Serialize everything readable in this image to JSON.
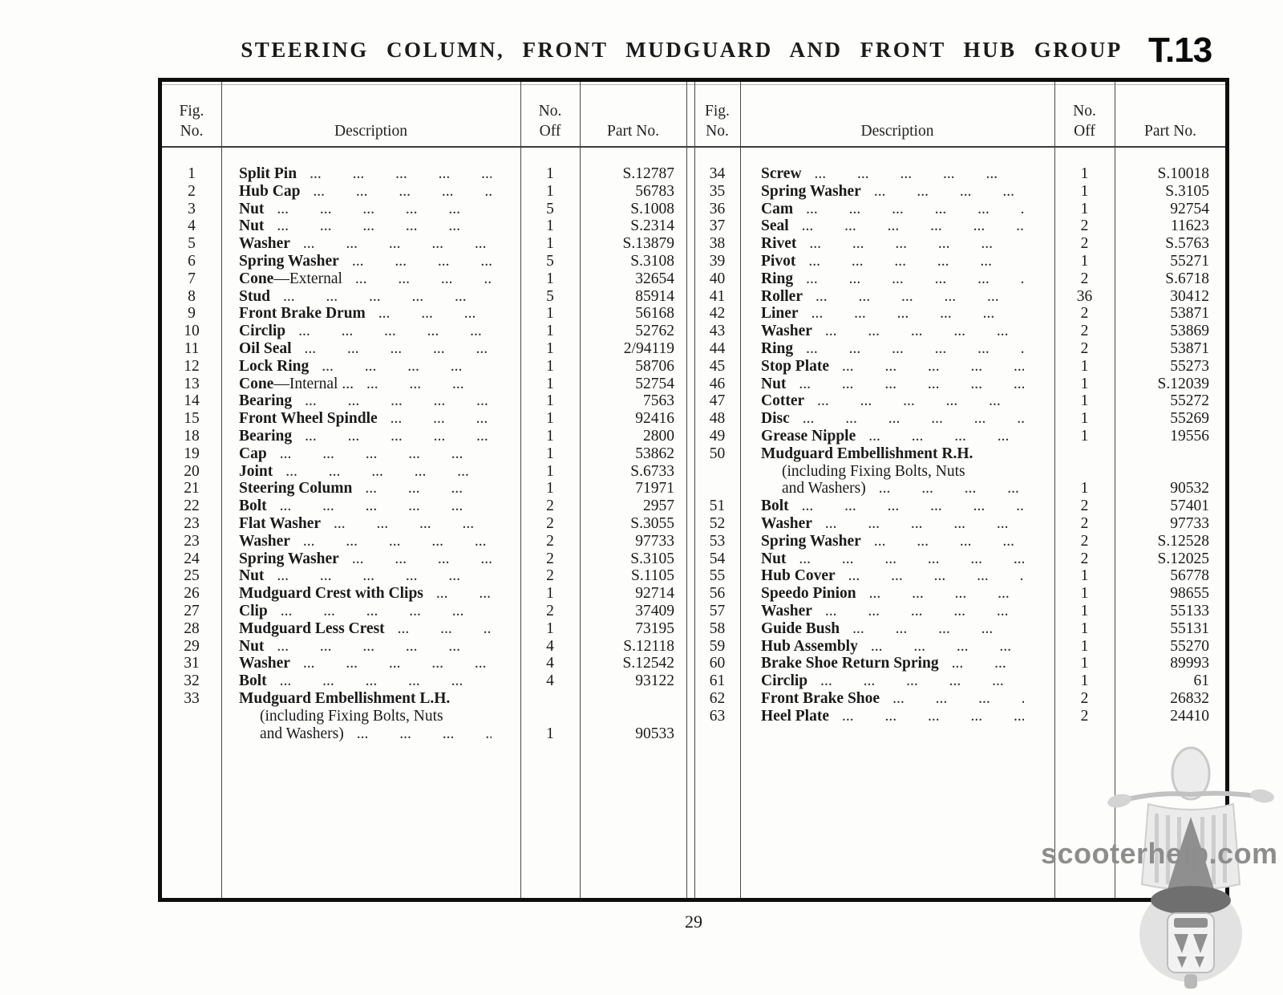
{
  "title": "STEERING COLUMN, FRONT MUDGUARD AND FRONT HUB GROUP",
  "plate_code": "T.13",
  "page_number": "29",
  "watermark_text": "scooterhelp.com",
  "leader_dots": "... ... ... ... ... ... ... ... ... ...",
  "headers": {
    "fig_line1": "Fig.",
    "fig_line2": "No.",
    "description": "Description",
    "off_line1": "No.",
    "off_line2": "Off",
    "part": "Part No."
  },
  "left_rows": [
    {
      "fig": "1",
      "desc": "Split Pin",
      "off": "1",
      "part": "S.12787"
    },
    {
      "fig": "2",
      "desc": "Hub Cap",
      "off": "1",
      "part": "56783"
    },
    {
      "fig": "3",
      "desc": "Nut",
      "off": "5",
      "part": "S.1008"
    },
    {
      "fig": "4",
      "desc": "Nut",
      "off": "1",
      "part": "S.2314"
    },
    {
      "fig": "5",
      "desc": "Washer",
      "off": "1",
      "part": "S.13879"
    },
    {
      "fig": "6",
      "desc": "Spring Washer",
      "off": "5",
      "part": "S.3108"
    },
    {
      "fig": "7",
      "desc": "Cone",
      "desc2": "—External",
      "off": "1",
      "part": "32654"
    },
    {
      "fig": "8",
      "desc": "Stud",
      "off": "5",
      "part": "85914"
    },
    {
      "fig": "9",
      "desc": "Front Brake Drum",
      "off": "1",
      "part": "56168"
    },
    {
      "fig": "10",
      "desc": "Circlip",
      "off": "1",
      "part": "52762"
    },
    {
      "fig": "11",
      "desc": "Oil Seal",
      "off": "1",
      "part": "2/94119"
    },
    {
      "fig": "12",
      "desc": "Lock Ring",
      "off": "1",
      "part": "58706"
    },
    {
      "fig": "13",
      "desc": "Cone",
      "desc2": "—Internal ...",
      "off": "1",
      "part": "52754"
    },
    {
      "fig": "14",
      "desc": "Bearing",
      "off": "1",
      "part": "7563"
    },
    {
      "fig": "15",
      "desc": "Front Wheel Spindle",
      "off": "1",
      "part": "92416"
    },
    {
      "fig": "18",
      "desc": "Bearing",
      "off": "1",
      "part": "2800"
    },
    {
      "fig": "19",
      "desc": "Cap",
      "off": "1",
      "part": "53862"
    },
    {
      "fig": "20",
      "desc": "Joint",
      "off": "1",
      "part": "S.6733"
    },
    {
      "fig": "21",
      "desc": "Steering Column",
      "off": "1",
      "part": "71971"
    },
    {
      "fig": "22",
      "desc": "Bolt",
      "off": "2",
      "part": "2957"
    },
    {
      "fig": "23",
      "desc": "Flat Washer",
      "off": "2",
      "part": "S.3055"
    },
    {
      "fig": "23",
      "desc": "Washer",
      "off": "2",
      "part": "97733"
    },
    {
      "fig": "24",
      "desc": "Spring Washer",
      "off": "2",
      "part": "S.3105"
    },
    {
      "fig": "25",
      "desc": "Nut",
      "off": "2",
      "part": "S.1105"
    },
    {
      "fig": "26",
      "desc": "Mudguard Crest with Clips",
      "off": "1",
      "part": "92714"
    },
    {
      "fig": "27",
      "desc": "Clip",
      "off": "2",
      "part": "37409"
    },
    {
      "fig": "28",
      "desc": "Mudguard Less Crest",
      "off": "1",
      "part": "73195"
    },
    {
      "fig": "29",
      "desc": "Nut",
      "off": "4",
      "part": "S.12118"
    },
    {
      "fig": "31",
      "desc": "Washer",
      "off": "4",
      "part": "S.12542"
    },
    {
      "fig": "32",
      "desc": "Bolt",
      "off": "4",
      "part": "93122"
    },
    {
      "fig": "33",
      "lines": [
        "Mudguard Embellishment L.H.",
        "(including Fixing Bolts, Nuts",
        "and Washers)"
      ],
      "off": "1",
      "part": "90533"
    }
  ],
  "right_rows": [
    {
      "fig": "34",
      "desc": "Screw",
      "off": "1",
      "part": "S.10018"
    },
    {
      "fig": "35",
      "desc": "Spring Washer",
      "off": "1",
      "part": "S.3105"
    },
    {
      "fig": "36",
      "desc": "Cam",
      "off": "1",
      "part": "92754"
    },
    {
      "fig": "37",
      "desc": "Seal",
      "off": "2",
      "part": "11623"
    },
    {
      "fig": "38",
      "desc": "Rivet",
      "off": "2",
      "part": "S.5763"
    },
    {
      "fig": "39",
      "desc": "Pivot",
      "off": "1",
      "part": "55271"
    },
    {
      "fig": "40",
      "desc": "Ring",
      "off": "2",
      "part": "S.6718"
    },
    {
      "fig": "41",
      "desc": "Roller",
      "off": "36",
      "part": "30412"
    },
    {
      "fig": "42",
      "desc": "Liner",
      "off": "2",
      "part": "53871"
    },
    {
      "fig": "43",
      "desc": "Washer",
      "off": "2",
      "part": "53869"
    },
    {
      "fig": "44",
      "desc": "Ring",
      "off": "2",
      "part": "53871"
    },
    {
      "fig": "45",
      "desc": "Stop Plate",
      "off": "1",
      "part": "55273"
    },
    {
      "fig": "46",
      "desc": "Nut",
      "off": "1",
      "part": "S.12039"
    },
    {
      "fig": "47",
      "desc": "Cotter",
      "off": "1",
      "part": "55272"
    },
    {
      "fig": "48",
      "desc": "Disc",
      "off": "1",
      "part": "55269"
    },
    {
      "fig": "49",
      "desc": "Grease Nipple",
      "off": "1",
      "part": "19556"
    },
    {
      "fig": "50",
      "lines": [
        "Mudguard Embellishment R.H.",
        "(including Fixing Bolts, Nuts",
        "and Washers)"
      ],
      "off": "1",
      "part": "90532"
    },
    {
      "fig": "51",
      "desc": "Bolt",
      "off": "2",
      "part": "57401"
    },
    {
      "fig": "52",
      "desc": "Washer",
      "off": "2",
      "part": "97733"
    },
    {
      "fig": "53",
      "desc": "Spring Washer",
      "off": "2",
      "part": "S.12528"
    },
    {
      "fig": "54",
      "desc": "Nut",
      "off": "2",
      "part": "S.12025"
    },
    {
      "fig": "55",
      "desc": "Hub Cover",
      "off": "1",
      "part": "56778"
    },
    {
      "fig": "56",
      "desc": "Speedo Pinion",
      "off": "1",
      "part": "98655"
    },
    {
      "fig": "57",
      "desc": "Washer",
      "off": "1",
      "part": "55133"
    },
    {
      "fig": "58",
      "desc": "Guide Bush",
      "off": "1",
      "part": "55131"
    },
    {
      "fig": "59",
      "desc": "Hub Assembly",
      "off": "1",
      "part": "55270"
    },
    {
      "fig": "60",
      "desc": "Brake Shoe Return Spring",
      "off": "1",
      "part": "89993"
    },
    {
      "fig": "61",
      "desc": "Circlip",
      "off": "1",
      "part": "61"
    },
    {
      "fig": "62",
      "desc": "Front Brake Shoe",
      "off": "2",
      "part": "26832"
    },
    {
      "fig": "63",
      "desc": "Heel Plate",
      "off": "2",
      "part": "24410"
    }
  ]
}
